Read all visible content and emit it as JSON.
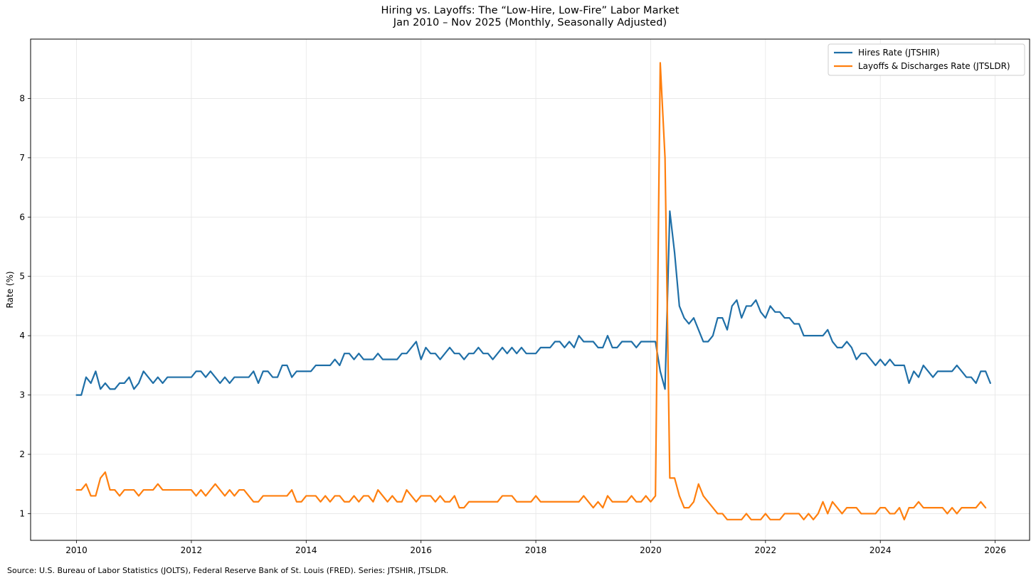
{
  "chart_data": {
    "type": "line",
    "title": "Hiring vs. Layoffs: The “Low-Hire, Low-Fire” Labor Market",
    "subtitle": "Jan 2010 – Nov 2025 (Monthly, Seasonally Adjusted)",
    "xlabel": "",
    "ylabel": "Rate (%)",
    "xlim": [
      2009.2,
      2026.6
    ],
    "ylim": [
      0.55,
      9.0
    ],
    "xticks": [
      2010,
      2012,
      2014,
      2016,
      2018,
      2020,
      2022,
      2024,
      2026
    ],
    "yticks": [
      1,
      2,
      3,
      4,
      5,
      6,
      7,
      8
    ],
    "grid": true,
    "legend_position": "top-right",
    "start": {
      "year": 2010,
      "month": 1
    },
    "series": [
      {
        "name": "Hires Rate (JTSHIR)",
        "color": "#1f6fa7",
        "values": [
          3.0,
          3.0,
          3.3,
          3.2,
          3.4,
          3.1,
          3.2,
          3.1,
          3.1,
          3.2,
          3.2,
          3.3,
          3.1,
          3.2,
          3.4,
          3.3,
          3.2,
          3.3,
          3.2,
          3.3,
          3.3,
          3.3,
          3.3,
          3.3,
          3.3,
          3.4,
          3.4,
          3.3,
          3.4,
          3.3,
          3.2,
          3.3,
          3.2,
          3.3,
          3.3,
          3.3,
          3.3,
          3.4,
          3.2,
          3.4,
          3.4,
          3.3,
          3.3,
          3.5,
          3.5,
          3.3,
          3.4,
          3.4,
          3.4,
          3.4,
          3.5,
          3.5,
          3.5,
          3.5,
          3.6,
          3.5,
          3.7,
          3.7,
          3.6,
          3.7,
          3.6,
          3.6,
          3.6,
          3.7,
          3.6,
          3.6,
          3.6,
          3.6,
          3.7,
          3.7,
          3.8,
          3.9,
          3.6,
          3.8,
          3.7,
          3.7,
          3.6,
          3.7,
          3.8,
          3.7,
          3.7,
          3.6,
          3.7,
          3.7,
          3.8,
          3.7,
          3.7,
          3.6,
          3.7,
          3.8,
          3.7,
          3.8,
          3.7,
          3.8,
          3.7,
          3.7,
          3.7,
          3.8,
          3.8,
          3.8,
          3.9,
          3.9,
          3.8,
          3.9,
          3.8,
          4.0,
          3.9,
          3.9,
          3.9,
          3.8,
          3.8,
          4.0,
          3.8,
          3.8,
          3.9,
          3.9,
          3.9,
          3.8,
          3.9,
          3.9,
          3.9,
          3.9,
          3.4,
          3.1,
          6.1,
          5.4,
          4.5,
          4.3,
          4.2,
          4.3,
          4.1,
          3.9,
          3.9,
          4.0,
          4.3,
          4.3,
          4.1,
          4.5,
          4.6,
          4.3,
          4.5,
          4.5,
          4.6,
          4.4,
          4.3,
          4.5,
          4.4,
          4.4,
          4.3,
          4.3,
          4.2,
          4.2,
          4.0,
          4.0,
          4.0,
          4.0,
          4.0,
          4.1,
          3.9,
          3.8,
          3.8,
          3.9,
          3.8,
          3.6,
          3.7,
          3.7,
          3.6,
          3.5,
          3.6,
          3.5,
          3.6,
          3.5,
          3.5,
          3.5,
          3.2,
          3.4,
          3.3,
          3.5,
          3.4,
          3.3,
          3.4,
          3.4,
          3.4,
          3.4,
          3.5,
          3.4,
          3.3,
          3.3,
          3.2,
          3.4,
          3.4,
          3.2
        ]
      },
      {
        "name": "Layoffs & Discharges Rate (JTSLDR)",
        "color": "#ff7f0e",
        "values": [
          1.4,
          1.4,
          1.5,
          1.3,
          1.3,
          1.6,
          1.7,
          1.4,
          1.4,
          1.3,
          1.4,
          1.4,
          1.4,
          1.3,
          1.4,
          1.4,
          1.4,
          1.5,
          1.4,
          1.4,
          1.4,
          1.4,
          1.4,
          1.4,
          1.4,
          1.3,
          1.4,
          1.3,
          1.4,
          1.5,
          1.4,
          1.3,
          1.4,
          1.3,
          1.4,
          1.4,
          1.3,
          1.2,
          1.2,
          1.3,
          1.3,
          1.3,
          1.3,
          1.3,
          1.3,
          1.4,
          1.2,
          1.2,
          1.3,
          1.3,
          1.3,
          1.2,
          1.3,
          1.2,
          1.3,
          1.3,
          1.2,
          1.2,
          1.3,
          1.2,
          1.3,
          1.3,
          1.2,
          1.4,
          1.3,
          1.2,
          1.3,
          1.2,
          1.2,
          1.4,
          1.3,
          1.2,
          1.3,
          1.3,
          1.3,
          1.2,
          1.3,
          1.2,
          1.2,
          1.3,
          1.1,
          1.1,
          1.2,
          1.2,
          1.2,
          1.2,
          1.2,
          1.2,
          1.2,
          1.3,
          1.3,
          1.3,
          1.2,
          1.2,
          1.2,
          1.2,
          1.3,
          1.2,
          1.2,
          1.2,
          1.2,
          1.2,
          1.2,
          1.2,
          1.2,
          1.2,
          1.3,
          1.2,
          1.1,
          1.2,
          1.1,
          1.3,
          1.2,
          1.2,
          1.2,
          1.2,
          1.3,
          1.2,
          1.2,
          1.3,
          1.2,
          1.3,
          8.6,
          7.0,
          1.6,
          1.6,
          1.3,
          1.1,
          1.1,
          1.2,
          1.5,
          1.3,
          1.2,
          1.1,
          1.0,
          1.0,
          0.9,
          0.9,
          0.9,
          0.9,
          1.0,
          0.9,
          0.9,
          0.9,
          1.0,
          0.9,
          0.9,
          0.9,
          1.0,
          1.0,
          1.0,
          1.0,
          0.9,
          1.0,
          0.9,
          1.0,
          1.2,
          1.0,
          1.2,
          1.1,
          1.0,
          1.1,
          1.1,
          1.1,
          1.0,
          1.0,
          1.0,
          1.0,
          1.1,
          1.1,
          1.0,
          1.0,
          1.1,
          0.9,
          1.1,
          1.1,
          1.2,
          1.1,
          1.1,
          1.1,
          1.1,
          1.1,
          1.0,
          1.1,
          1.0,
          1.1,
          1.1,
          1.1,
          1.1,
          1.2,
          1.1
        ]
      }
    ],
    "source_note": "Source: U.S. Bureau of Labor Statistics (JOLTS), Federal Reserve Bank of St. Louis (FRED). Series: JTSHIR, JTSLDR."
  }
}
